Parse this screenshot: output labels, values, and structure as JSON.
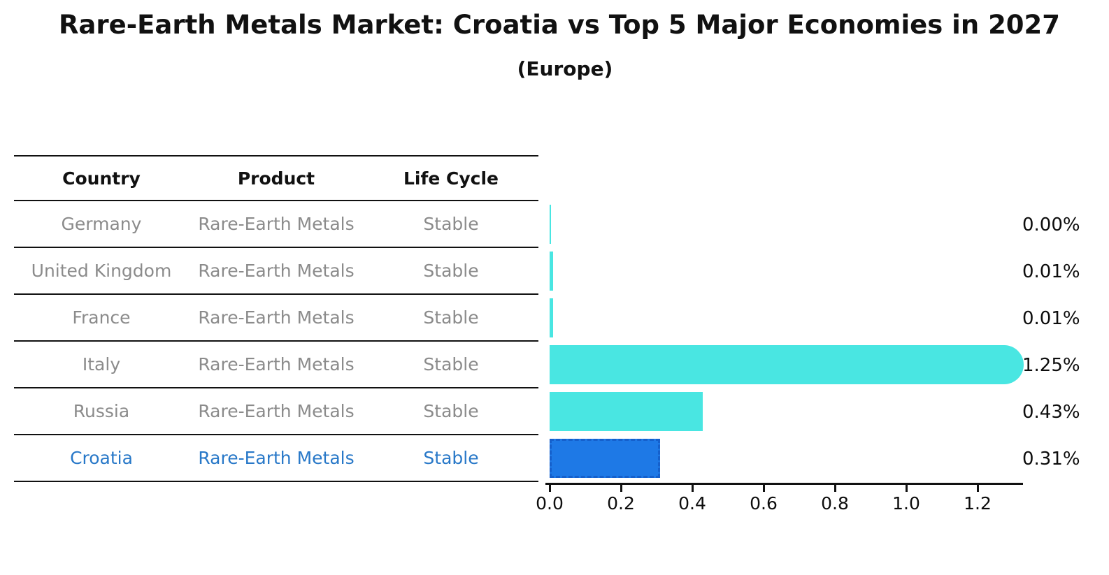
{
  "title": "Rare-Earth Metals Market: Croatia vs Top 5 Major Economies in 2027",
  "subtitle": "(Europe)",
  "table": {
    "headers": [
      "Country",
      "Product",
      "Life Cycle"
    ],
    "rows": [
      {
        "country": "Germany",
        "product": "Rare-Earth Metals",
        "life_cycle": "Stable",
        "highlighted": false
      },
      {
        "country": "United Kingdom",
        "product": "Rare-Earth Metals",
        "life_cycle": "Stable",
        "highlighted": false
      },
      {
        "country": "France",
        "product": "Rare-Earth Metals",
        "life_cycle": "Stable",
        "highlighted": false
      },
      {
        "country": "Italy",
        "product": "Rare-Earth Metals",
        "life_cycle": "Stable",
        "highlighted": false
      },
      {
        "country": "Russia",
        "product": "Rare-Earth Metals",
        "life_cycle": "Stable",
        "highlighted": false
      },
      {
        "country": "Croatia",
        "product": "Rare-Earth Metals",
        "life_cycle": "Stable",
        "highlighted": true
      }
    ]
  },
  "chart_data": {
    "type": "bar",
    "orientation": "horizontal",
    "categories": [
      "Germany",
      "United Kingdom",
      "France",
      "Italy",
      "Russia",
      "Croatia"
    ],
    "values": [
      0.0,
      0.01,
      0.01,
      1.25,
      0.43,
      0.31
    ],
    "value_labels": [
      "0.00%",
      "0.01%",
      "0.01%",
      "1.25%",
      "0.43%",
      "0.31%"
    ],
    "x_tick_labels": [
      "0.0",
      "0.2",
      "0.4",
      "0.6",
      "0.8",
      "1.0",
      "1.2"
    ],
    "xlim": [
      0.0,
      1.32
    ],
    "grid": false,
    "legend": "none",
    "highlight_index": 5,
    "colors": {
      "default_bar": "#49E6E2",
      "highlight_bar": "#1E79E6",
      "highlight_border": "#1560CC",
      "highlight_text": "#2878C8",
      "row_text": "#8B8B8B",
      "header_text": "#111111",
      "axis": "#111111"
    }
  }
}
